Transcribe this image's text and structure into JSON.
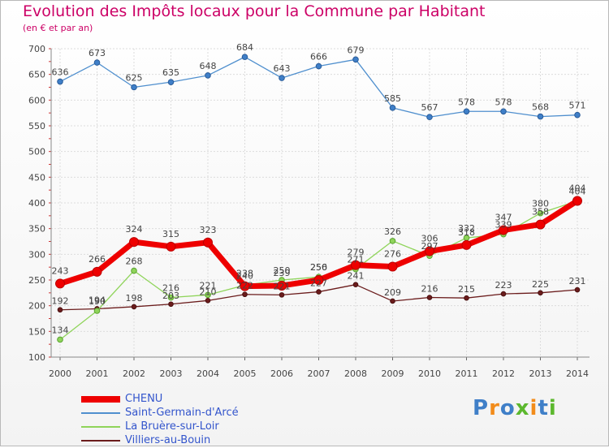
{
  "chart_data": {
    "type": "line",
    "title": "Evolution des Impôts locaux pour la Commune par Habitant",
    "subtitle": "(en € et par an)",
    "xlabel": "",
    "ylabel": "",
    "ylim": [
      100,
      700
    ],
    "yticks": [
      100,
      150,
      200,
      250,
      300,
      350,
      400,
      450,
      500,
      550,
      600,
      650,
      700
    ],
    "grid": true,
    "legend_position": "bottom-left",
    "categories": [
      "2000",
      "2001",
      "2002",
      "2003",
      "2004",
      "2005",
      "2006",
      "2007",
      "2008",
      "2009",
      "2010",
      "2011",
      "2012",
      "2013",
      "2014"
    ],
    "series": [
      {
        "name": "Saint-Germain-d'Arcé",
        "color": "#4f8fce",
        "values": [
          636,
          673,
          625,
          635,
          648,
          684,
          643,
          666,
          679,
          585,
          567,
          578,
          578,
          568,
          571
        ]
      },
      {
        "name": "Villiers-au-Bouin",
        "color": "#6b1c1c",
        "values": [
          192,
          194,
          198,
          203,
          210,
          222,
          221,
          227,
          241,
          209,
          216,
          215,
          223,
          225,
          231
        ]
      },
      {
        "name": "La Bruère-sur-Loir",
        "color": "#8fd45a",
        "values": [
          134,
          190,
          268,
          216,
          221,
          240,
          250,
          256,
          271,
          326,
          297,
          332,
          339,
          380,
          404
        ]
      },
      {
        "name": "CHENU",
        "color": "#ee0000",
        "values": [
          243,
          266,
          324,
          315,
          323,
          238,
          239,
          250,
          279,
          276,
          306,
          318,
          347,
          358,
          404
        ]
      }
    ],
    "legend_order": [
      "CHENU",
      "Saint-Germain-d'Arcé",
      "La Bruère-sur-Loir",
      "Villiers-au-Bouin"
    ]
  },
  "brand": {
    "logo_letters": [
      "P",
      "r",
      "o",
      "x",
      "i",
      "t",
      "i"
    ],
    "logo_colors": [
      "#3f7fc8",
      "#f28c1b",
      "#3f7fc8",
      "#5cb82e",
      "#f28c1b",
      "#3f7fc8",
      "#5cb82e"
    ]
  }
}
